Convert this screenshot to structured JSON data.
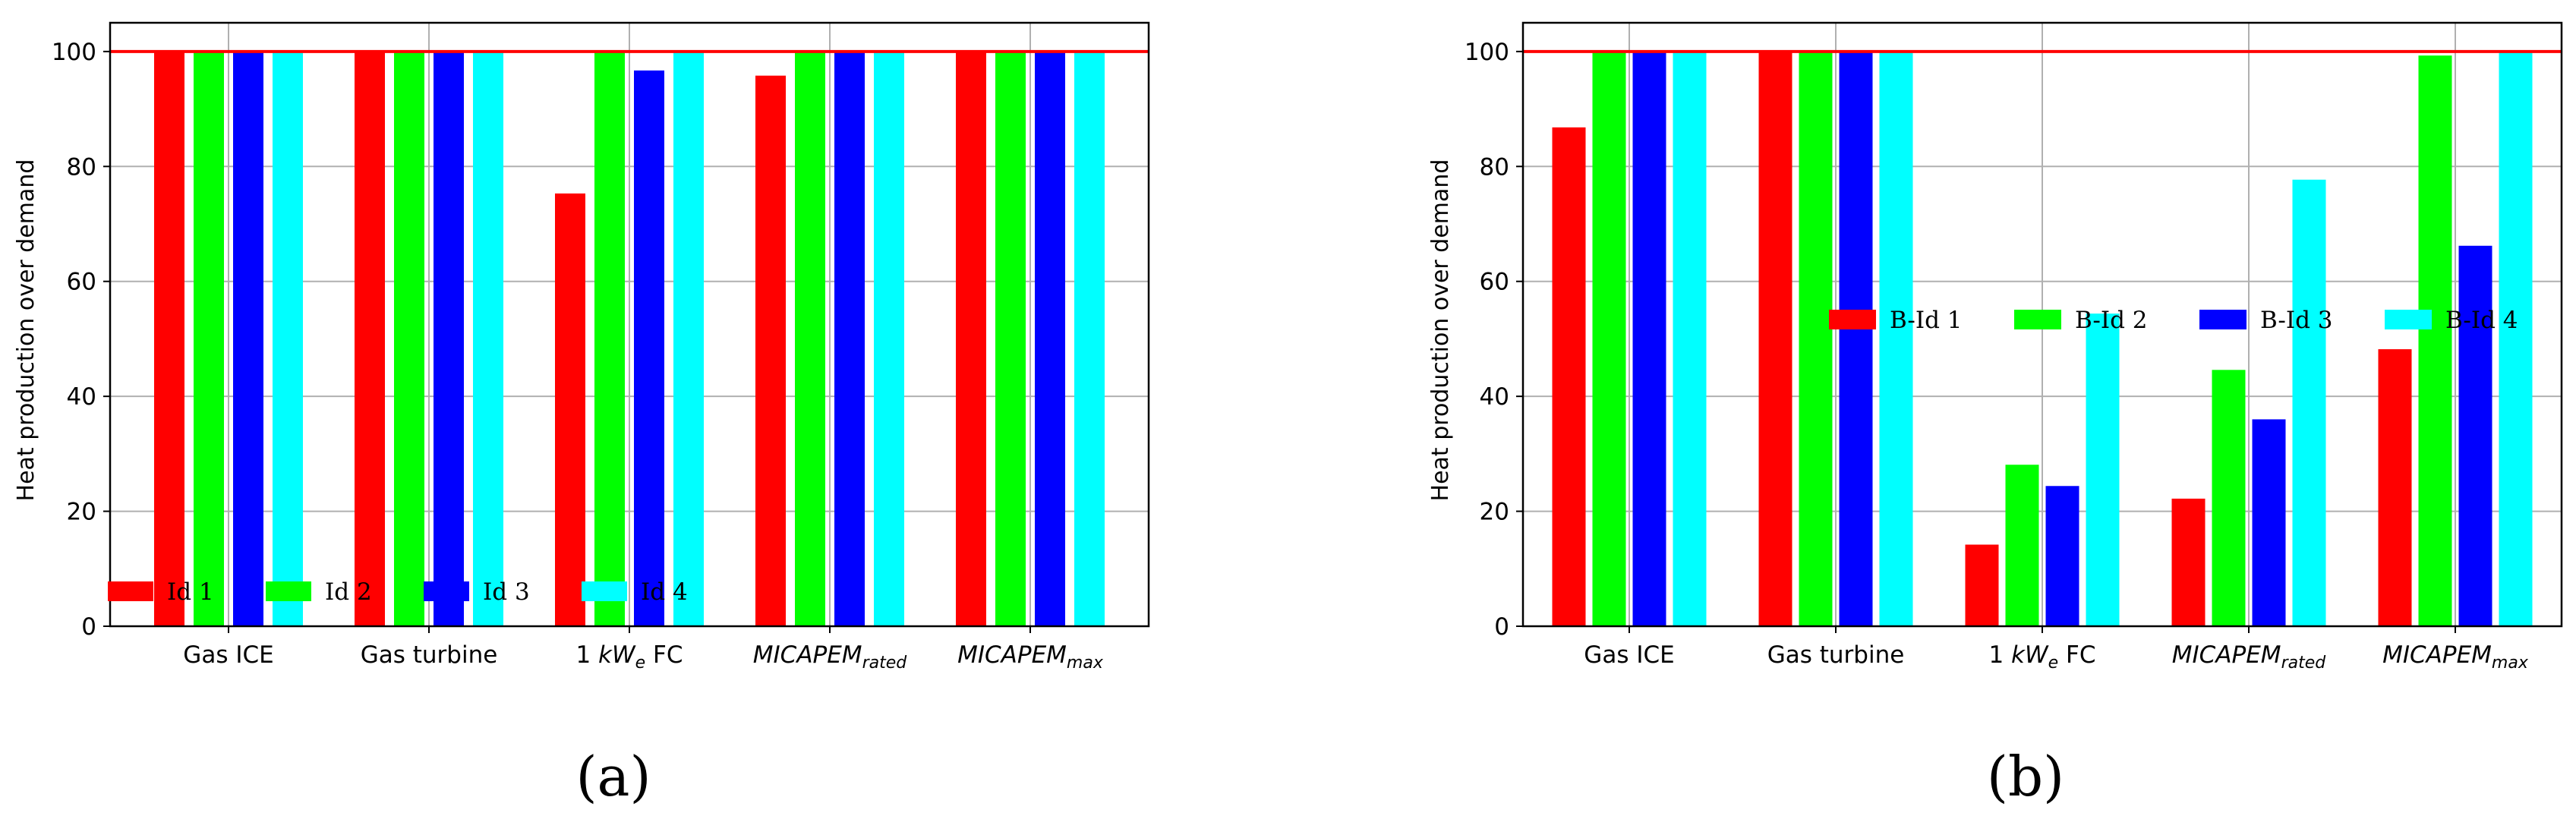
{
  "chart_data": [
    {
      "type": "bar",
      "panel_label": "a",
      "panel_label_display": "(a)",
      "categories": [
        {
          "base": "Gas ICE",
          "sub": ""
        },
        {
          "base": "Gas turbine",
          "sub": ""
        },
        {
          "base": "1 kW",
          "sub": "e",
          "suffix": " FC"
        },
        {
          "base": "MICAPEM",
          "sub": "rated"
        },
        {
          "base": "MICAPEM",
          "sub": "max"
        }
      ],
      "series": [
        {
          "name": "Id 1",
          "color": "#ff0000",
          "values": [
            100,
            100,
            75.3,
            95.8,
            100
          ]
        },
        {
          "name": "Id 2",
          "color": "#00ff00",
          "values": [
            100,
            100,
            100,
            100,
            100
          ]
        },
        {
          "name": "Id 3",
          "color": "#0000ff",
          "values": [
            100,
            100,
            96.7,
            100,
            100
          ]
        },
        {
          "name": "Id 4",
          "color": "#00ffff",
          "values": [
            100,
            100,
            100,
            100,
            100
          ]
        }
      ],
      "reference_line": {
        "value": 100,
        "color": "#ff0000"
      },
      "title": "",
      "xlabel": "",
      "ylabel": "Heat production over demand",
      "ylim": [
        0,
        105
      ],
      "yticks": [
        0,
        20,
        40,
        60,
        80,
        100
      ],
      "grid": true,
      "legend_position": "lower-left"
    },
    {
      "type": "bar",
      "panel_label": "b",
      "panel_label_display": "(b)",
      "categories": [
        {
          "base": "Gas ICE",
          "sub": ""
        },
        {
          "base": "Gas turbine",
          "sub": ""
        },
        {
          "base": "1 kW",
          "sub": "e",
          "suffix": " FC"
        },
        {
          "base": "MICAPEM",
          "sub": "rated"
        },
        {
          "base": "MICAPEM",
          "sub": "max"
        }
      ],
      "series": [
        {
          "name": "B-Id 1",
          "color": "#ff0000",
          "values": [
            86.8,
            100,
            14.2,
            22.2,
            48.2
          ]
        },
        {
          "name": "B-Id 2",
          "color": "#00ff00",
          "values": [
            100,
            100,
            28.1,
            44.6,
            99.3
          ]
        },
        {
          "name": "B-Id 3",
          "color": "#0000ff",
          "values": [
            100,
            100,
            24.4,
            36,
            66.2
          ]
        },
        {
          "name": "B-Id 4",
          "color": "#00ffff",
          "values": [
            100,
            100,
            54.4,
            77.7,
            100
          ]
        }
      ],
      "reference_line": {
        "value": 100,
        "color": "#ff0000"
      },
      "title": "",
      "xlabel": "",
      "ylabel": "Heat production over demand",
      "ylim": [
        0,
        105
      ],
      "yticks": [
        0,
        20,
        40,
        60,
        80,
        100
      ],
      "grid": true,
      "legend_position": "center-right"
    }
  ]
}
